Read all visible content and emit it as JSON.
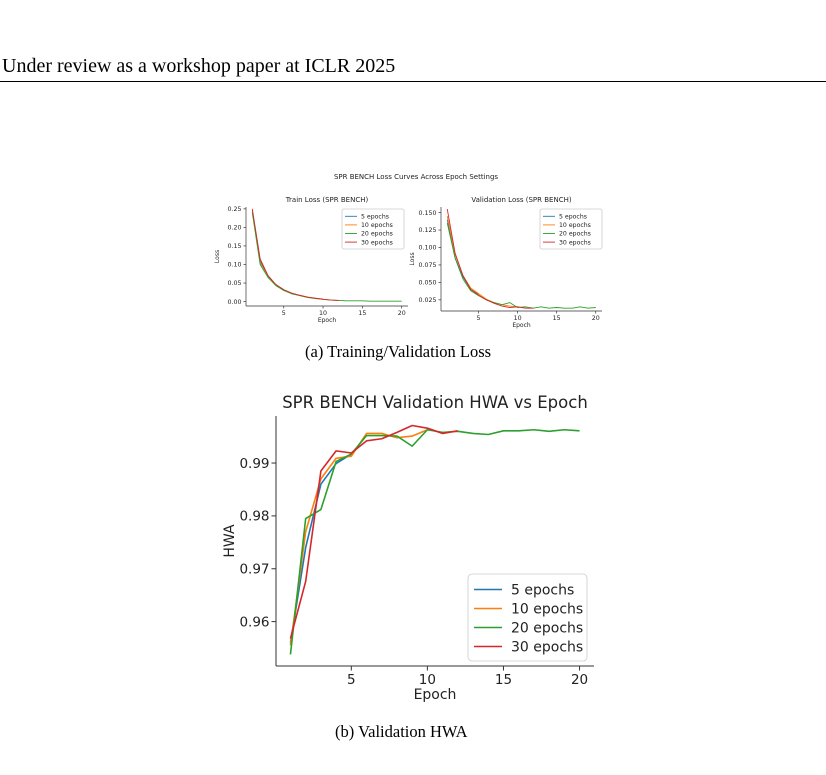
{
  "header": {
    "running_title": "Under review as a workshop paper at ICLR 2025"
  },
  "figure_a": {
    "suptitle": "SPR BENCH Loss Curves Across Epoch Settings",
    "caption": "(a)  Training/Validation Loss"
  },
  "figure_b": {
    "caption": "(b)  Validation HWA"
  },
  "colors": {
    "5 epochs": "#1f77b4",
    "10 epochs": "#ff7f0e",
    "20 epochs": "#2ca02c",
    "30 epochs": "#d62728"
  },
  "chart_data": [
    {
      "type": "line",
      "title": "Train Loss (SPR BENCH)",
      "xlabel": "Epoch",
      "ylabel": "Loss",
      "xlim": [
        0.2,
        20.8
      ],
      "ylim": [
        -0.012,
        0.255
      ],
      "xticks": [
        5,
        10,
        15,
        20
      ],
      "yticks": [
        0.0,
        0.05,
        0.1,
        0.15,
        0.2,
        0.25
      ],
      "ytick_labels": [
        "0.00",
        "0.05",
        "0.10",
        "0.15",
        "0.20",
        "0.25"
      ],
      "legend": "top-right",
      "series": [
        {
          "name": "5 epochs",
          "x": [
            1,
            2,
            3,
            4,
            5
          ],
          "y": [
            0.245,
            0.11,
            0.068,
            0.045,
            0.032
          ]
        },
        {
          "name": "10 epochs",
          "x": [
            1,
            2,
            3,
            4,
            5,
            6,
            7,
            8,
            9,
            10
          ],
          "y": [
            0.245,
            0.105,
            0.066,
            0.043,
            0.031,
            0.022,
            0.017,
            0.012,
            0.009,
            0.007
          ]
        },
        {
          "name": "20 epochs",
          "x": [
            1,
            2,
            3,
            4,
            5,
            6,
            7,
            8,
            9,
            10,
            11,
            12,
            13,
            14,
            15,
            16,
            17,
            18,
            19,
            20
          ],
          "y": [
            0.24,
            0.1,
            0.065,
            0.043,
            0.03,
            0.021,
            0.016,
            0.011,
            0.008,
            0.006,
            0.004,
            0.003,
            0.002,
            0.002,
            0.002,
            0.001,
            0.001,
            0.001,
            0.001,
            0.001
          ]
        },
        {
          "name": "30 epochs",
          "x": [
            1,
            2,
            3,
            4,
            5,
            6,
            7,
            8,
            9,
            10,
            11,
            12
          ],
          "y": [
            0.25,
            0.115,
            0.07,
            0.046,
            0.032,
            0.023,
            0.017,
            0.012,
            0.009,
            0.006,
            0.004,
            0.003
          ]
        }
      ]
    },
    {
      "type": "line",
      "title": "Validation Loss (SPR BENCH)",
      "xlabel": "Epoch",
      "ylabel": "Loss",
      "xlim": [
        0.2,
        20.8
      ],
      "ylim": [
        0.009,
        0.158
      ],
      "xticks": [
        5,
        10,
        15,
        20
      ],
      "yticks": [
        0.025,
        0.05,
        0.075,
        0.1,
        0.125,
        0.15
      ],
      "ytick_labels": [
        "0.025",
        "0.050",
        "0.075",
        "0.100",
        "0.125",
        "0.150"
      ],
      "legend": "top-right",
      "series": [
        {
          "name": "5 epochs",
          "x": [
            1,
            2,
            3,
            4,
            5
          ],
          "y": [
            0.14,
            0.085,
            0.058,
            0.04,
            0.033
          ]
        },
        {
          "name": "10 epochs",
          "x": [
            1,
            2,
            3,
            4,
            5,
            6,
            7,
            8,
            9,
            10
          ],
          "y": [
            0.145,
            0.09,
            0.06,
            0.042,
            0.034,
            0.026,
            0.021,
            0.018,
            0.016,
            0.015
          ]
        },
        {
          "name": "20 epochs",
          "x": [
            1,
            2,
            3,
            4,
            5,
            6,
            7,
            8,
            9,
            10,
            11,
            12,
            13,
            14,
            15,
            16,
            17,
            18,
            19,
            20
          ],
          "y": [
            0.135,
            0.085,
            0.055,
            0.038,
            0.031,
            0.025,
            0.021,
            0.018,
            0.021,
            0.014,
            0.015,
            0.013,
            0.015,
            0.013,
            0.014,
            0.013,
            0.013,
            0.015,
            0.013,
            0.014
          ]
        },
        {
          "name": "30 epochs",
          "x": [
            1,
            2,
            3,
            4,
            5,
            6,
            7,
            8,
            9,
            10,
            11,
            12
          ],
          "y": [
            0.155,
            0.092,
            0.06,
            0.04,
            0.032,
            0.025,
            0.02,
            0.016,
            0.014,
            0.015,
            0.013,
            0.013
          ]
        }
      ]
    },
    {
      "type": "line",
      "title": "SPR BENCH Validation HWA vs Epoch",
      "xlabel": "Epoch",
      "ylabel": "HWA",
      "xlim": [
        0.05,
        20.95
      ],
      "ylim": [
        0.9516,
        0.9989
      ],
      "xticks": [
        5,
        10,
        15,
        20
      ],
      "yticks": [
        0.96,
        0.97,
        0.98,
        0.99
      ],
      "ytick_labels": [
        "0.96",
        "0.97",
        "0.98",
        "0.99"
      ],
      "legend": "lower-right",
      "series": [
        {
          "name": "5 epochs",
          "x": [
            1,
            2,
            3,
            4,
            5
          ],
          "y": [
            0.956,
            0.974,
            0.986,
            0.9899,
            0.9917
          ]
        },
        {
          "name": "10 epochs",
          "x": [
            1,
            2,
            3,
            4,
            5,
            6,
            7,
            8,
            9,
            10
          ],
          "y": [
            0.9555,
            0.977,
            0.987,
            0.9909,
            0.9913,
            0.9956,
            0.9956,
            0.9948,
            0.9951,
            0.9963
          ]
        },
        {
          "name": "20 epochs",
          "x": [
            1,
            2,
            3,
            4,
            5,
            6,
            7,
            8,
            9,
            10,
            11,
            12,
            13,
            14,
            15,
            16,
            17,
            18,
            19,
            20
          ],
          "y": [
            0.9538,
            0.9795,
            0.9812,
            0.9903,
            0.9917,
            0.9952,
            0.9952,
            0.9951,
            0.9932,
            0.9963,
            0.9958,
            0.996,
            0.9956,
            0.9954,
            0.9961,
            0.9961,
            0.9963,
            0.996,
            0.9963,
            0.9961
          ]
        },
        {
          "name": "30 epochs",
          "x": [
            1,
            2,
            3,
            4,
            5,
            6,
            7,
            8,
            9,
            10,
            11,
            12
          ],
          "y": [
            0.9568,
            0.9676,
            0.9885,
            0.9923,
            0.9919,
            0.9942,
            0.9946,
            0.9958,
            0.9971,
            0.9966,
            0.9956,
            0.9961
          ]
        }
      ]
    }
  ]
}
